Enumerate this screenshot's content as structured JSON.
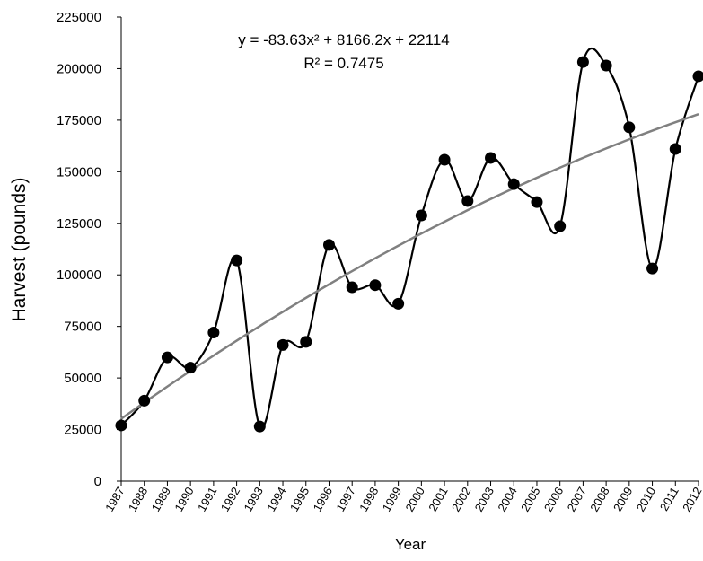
{
  "chart_data": {
    "type": "line",
    "x_label": "Year",
    "y_label": "Harvest (pounds)",
    "categories": [
      "1987",
      "1988",
      "1989",
      "1990",
      "1991",
      "1992",
      "1993",
      "1994",
      "1995",
      "1996",
      "1997",
      "1998",
      "1999",
      "2000",
      "2001",
      "2002",
      "2003",
      "2004",
      "2005",
      "2006",
      "2007",
      "2008",
      "2009",
      "2010",
      "2011",
      "2012"
    ],
    "series": [
      {
        "color": "#000000",
        "values": [
          27000,
          39000,
          60000,
          55000,
          72000,
          107000,
          26500,
          66000,
          67500,
          114500,
          94000,
          95000,
          86000,
          128800,
          155800,
          135800,
          156700,
          144000,
          135300,
          123600,
          203200,
          201500,
          171500,
          103100,
          161000,
          196300
        ]
      }
    ],
    "trendline": {
      "color": "#808080",
      "coefficients": [
        -83.63,
        8166.2,
        22114
      ],
      "equation": "y = -83.63x² + 8166.2x + 22114",
      "r_squared_label": "R² = 0.7475"
    },
    "ylim": [
      0,
      225000
    ],
    "yticks": [
      0,
      25000,
      50000,
      75000,
      100000,
      125000,
      150000,
      175000,
      200000,
      225000
    ]
  }
}
